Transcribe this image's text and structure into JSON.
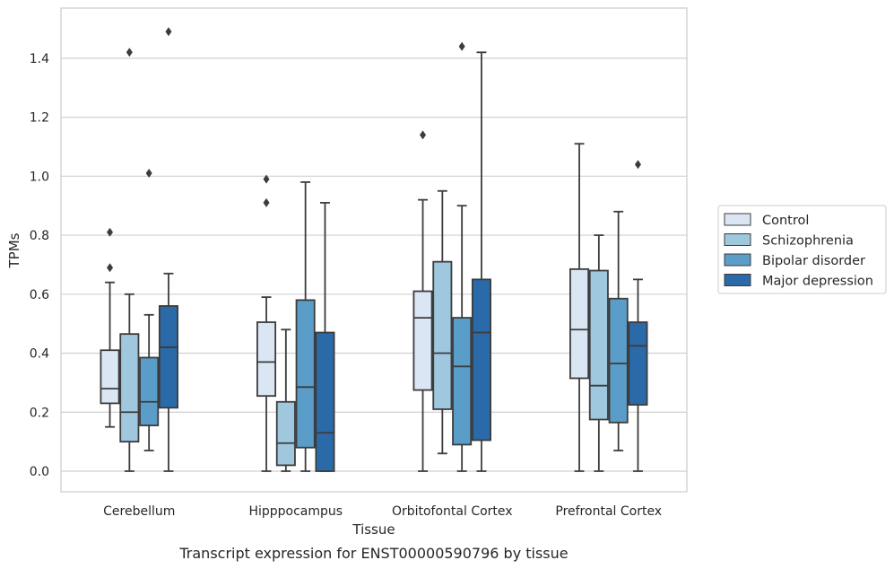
{
  "caption": "Transcript expression for ENST00000590796 by tissue",
  "chart_data": {
    "type": "box",
    "xlabel": "Tissue",
    "ylabel": "TPMs",
    "ylim": [
      -0.07,
      1.57
    ],
    "yticks": [
      "0.0",
      "0.2",
      "0.4",
      "0.6",
      "0.8",
      "1.0",
      "1.2",
      "1.4"
    ],
    "grid": "horizontal",
    "legend_position": "outside-right",
    "categories": [
      "Cerebellum",
      "Hipppocampus",
      "Orbitofontal Cortex",
      "Prefrontal Cortex"
    ],
    "series": [
      {
        "name": "Control",
        "color": "#dae6f3",
        "boxes": [
          {
            "whislo": 0.15,
            "q1": 0.23,
            "med": 0.28,
            "q3": 0.41,
            "whishi": 0.64,
            "fliers": [
              0.69,
              0.81
            ]
          },
          {
            "whislo": 0.0,
            "q1": 0.255,
            "med": 0.37,
            "q3": 0.505,
            "whishi": 0.59,
            "fliers": [
              0.91,
              0.99
            ]
          },
          {
            "whislo": 0.0,
            "q1": 0.275,
            "med": 0.52,
            "q3": 0.61,
            "whishi": 0.92,
            "fliers": [
              1.14
            ]
          },
          {
            "whislo": 0.0,
            "q1": 0.315,
            "med": 0.48,
            "q3": 0.685,
            "whishi": 1.11,
            "fliers": []
          }
        ]
      },
      {
        "name": "Schizophrenia",
        "color": "#9fc8df",
        "boxes": [
          {
            "whislo": 0.0,
            "q1": 0.1,
            "med": 0.2,
            "q3": 0.465,
            "whishi": 0.6,
            "fliers": [
              1.42
            ]
          },
          {
            "whislo": 0.0,
            "q1": 0.02,
            "med": 0.095,
            "q3": 0.235,
            "whishi": 0.48,
            "fliers": []
          },
          {
            "whislo": 0.06,
            "q1": 0.21,
            "med": 0.4,
            "q3": 0.71,
            "whishi": 0.95,
            "fliers": []
          },
          {
            "whislo": 0.0,
            "q1": 0.175,
            "med": 0.29,
            "q3": 0.68,
            "whishi": 0.8,
            "fliers": []
          }
        ]
      },
      {
        "name": "Bipolar disorder",
        "color": "#5a9dc8",
        "boxes": [
          {
            "whislo": 0.07,
            "q1": 0.155,
            "med": 0.235,
            "q3": 0.385,
            "whishi": 0.53,
            "fliers": [
              1.01
            ]
          },
          {
            "whislo": 0.0,
            "q1": 0.08,
            "med": 0.285,
            "q3": 0.58,
            "whishi": 0.98,
            "fliers": []
          },
          {
            "whislo": 0.0,
            "q1": 0.09,
            "med": 0.355,
            "q3": 0.52,
            "whishi": 0.9,
            "fliers": [
              1.44
            ]
          },
          {
            "whislo": 0.07,
            "q1": 0.165,
            "med": 0.365,
            "q3": 0.585,
            "whishi": 0.88,
            "fliers": []
          }
        ]
      },
      {
        "name": "Major depression",
        "color": "#2b6aa8",
        "boxes": [
          {
            "whislo": 0.0,
            "q1": 0.215,
            "med": 0.42,
            "q3": 0.56,
            "whishi": 0.67,
            "fliers": [
              1.49
            ]
          },
          {
            "whislo": 0.0,
            "q1": 0.0,
            "med": 0.13,
            "q3": 0.47,
            "whishi": 0.91,
            "fliers": []
          },
          {
            "whislo": 0.0,
            "q1": 0.105,
            "med": 0.47,
            "q3": 0.65,
            "whishi": 1.42,
            "fliers": []
          },
          {
            "whislo": 0.0,
            "q1": 0.225,
            "med": 0.425,
            "q3": 0.505,
            "whishi": 0.65,
            "fliers": [
              1.04
            ]
          }
        ]
      }
    ]
  }
}
